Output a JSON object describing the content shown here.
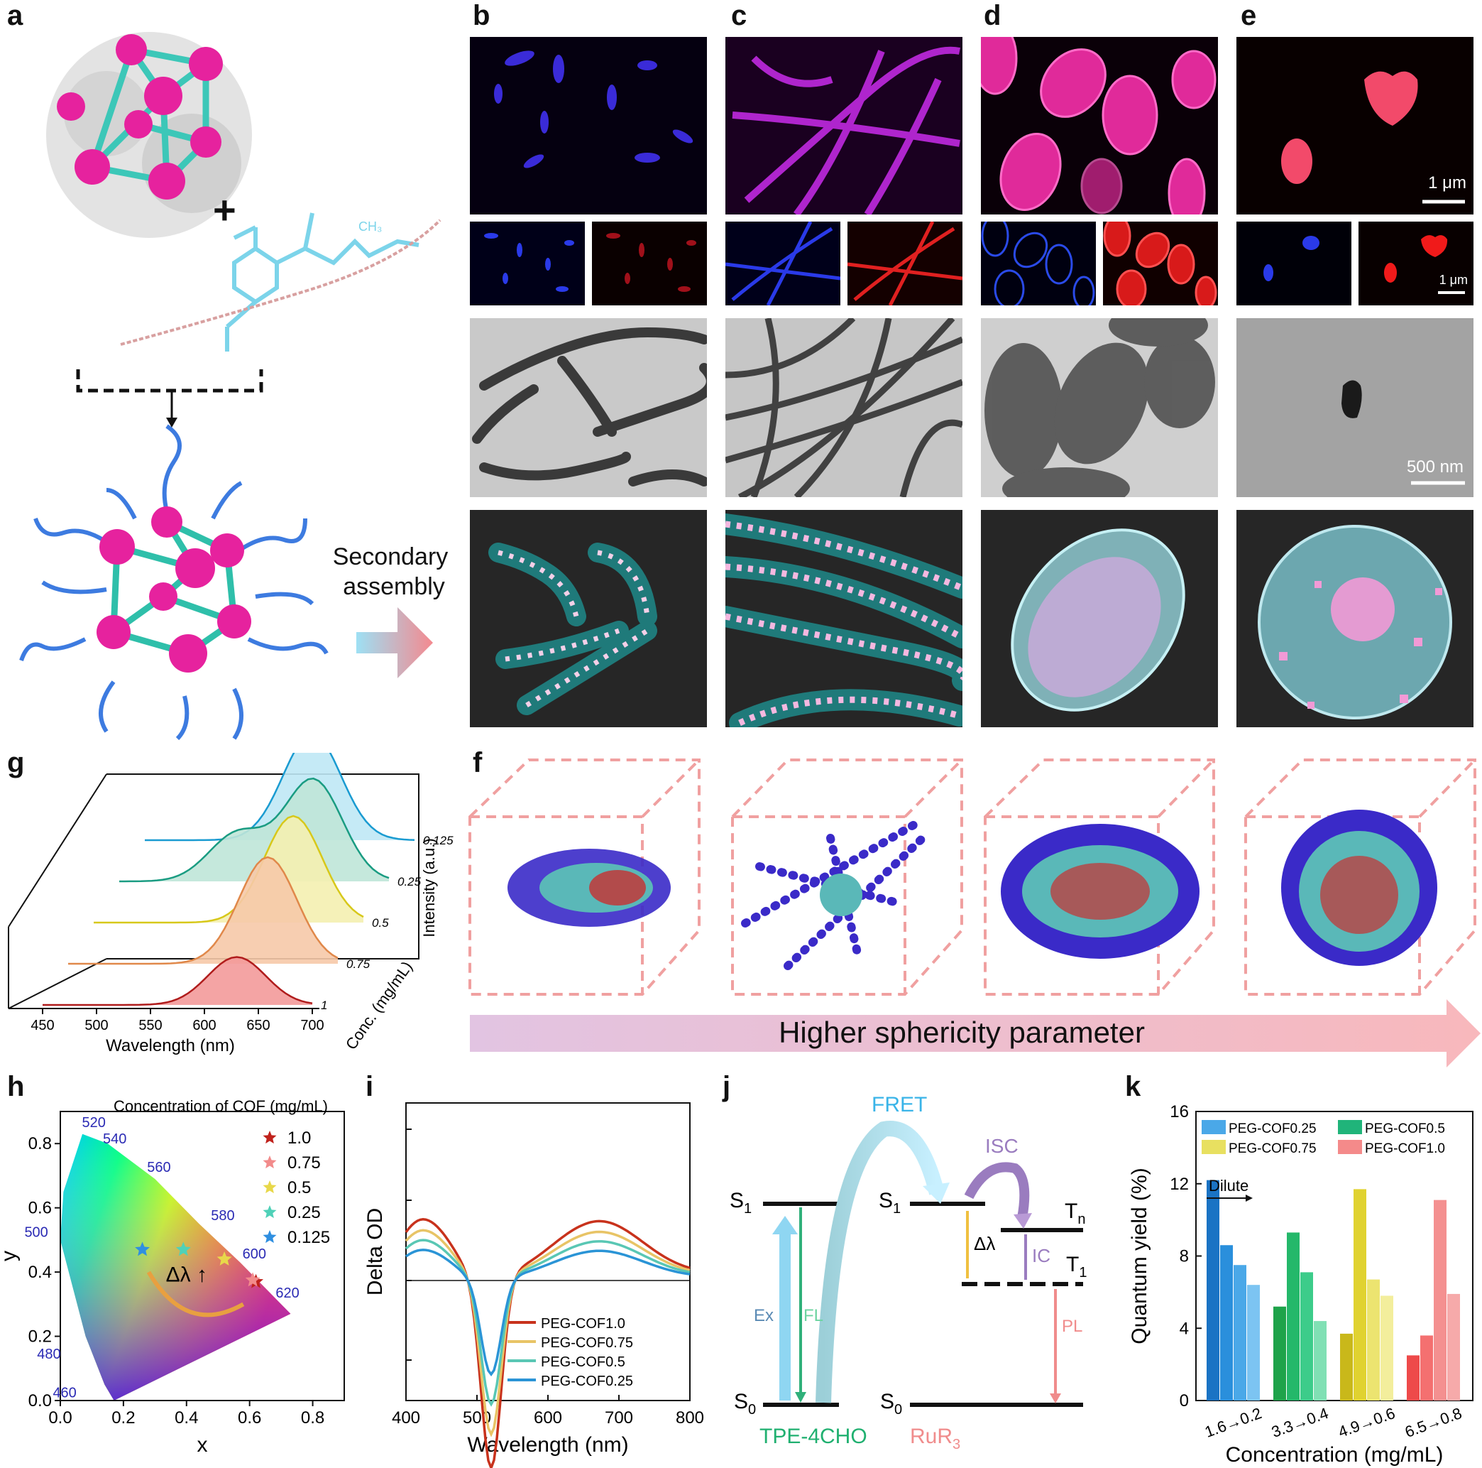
{
  "panels": {
    "a": "a",
    "b": "b",
    "c": "c",
    "d": "d",
    "e": "e",
    "f": "f",
    "g": "g",
    "h": "h",
    "i": "i",
    "j": "j",
    "k": "k"
  },
  "a": {
    "plus": "+",
    "ch3": "CH₃",
    "secondary": "Secondary",
    "assembly": "assembly"
  },
  "scalebars": {
    "top": "1 μm",
    "mid": "1 μm",
    "tem": "500 nm"
  },
  "f": {
    "arrow_text": "Higher sphericity parameter"
  },
  "g": {
    "chart_data": {
      "type": "area",
      "xlabel": "Wavelength (nm)",
      "zlabel": "Intensity (a.u.)",
      "depth_label": "Conc. (mg/mL)",
      "x_ticks": [
        "450",
        "500",
        "550",
        "600",
        "650",
        "700"
      ],
      "depth_ticks": [
        "0.125",
        "0.25",
        "0.5",
        "0.75",
        "1"
      ],
      "series": [
        {
          "conc": "0.125",
          "color": "#bfe8f5",
          "line": "#1a9bd1",
          "peaks": [
            [
              605,
              1.0
            ]
          ]
        },
        {
          "conc": "0.25",
          "color": "#bfe6d8",
          "line": "#1a9c82",
          "peaks": [
            [
              560,
              0.45
            ],
            [
              630,
              0.95
            ]
          ]
        },
        {
          "conc": "0.5",
          "color": "#f4f0b0",
          "line": "#d7c81a",
          "peaks": [
            [
              635,
              1.0
            ]
          ]
        },
        {
          "conc": "0.75",
          "color": "#f6c9a8",
          "line": "#e0884a",
          "peaks": [
            [
              635,
              1.0
            ]
          ]
        },
        {
          "conc": "1",
          "color": "#f39a9a",
          "line": "#b01c1c",
          "peaks": [
            [
              630,
              0.45
            ]
          ]
        }
      ]
    }
  },
  "h": {
    "chart_data": {
      "type": "scatter",
      "title": "Concentration of COF (mg/mL)",
      "xlabel": "x",
      "ylabel": "y",
      "xlim": [
        0,
        0.9
      ],
      "ylim": [
        0,
        0.9
      ],
      "x_ticks": [
        "0.0",
        "0.2",
        "0.4",
        "0.6",
        "0.8"
      ],
      "y_ticks": [
        "0.0",
        "0.2",
        "0.4",
        "0.6",
        "0.8"
      ],
      "wavelength_labels": [
        "520",
        "540",
        "560",
        "580",
        "600",
        "620",
        "500",
        "480",
        "460"
      ],
      "series": [
        {
          "name": "1.0",
          "x": 0.62,
          "y": 0.37,
          "color": "#c0221c"
        },
        {
          "name": "0.75",
          "x": 0.61,
          "y": 0.375,
          "color": "#f28b8b"
        },
        {
          "name": "0.5",
          "x": 0.52,
          "y": 0.44,
          "color": "#e8d84a"
        },
        {
          "name": "0.25",
          "x": 0.39,
          "y": 0.47,
          "color": "#4fd1b8"
        },
        {
          "name": "0.125",
          "x": 0.26,
          "y": 0.47,
          "color": "#2f8fe0"
        }
      ],
      "annotation": "Δλ ↑"
    }
  },
  "i": {
    "chart_data": {
      "type": "line",
      "xlabel": "Wavelength (nm)",
      "ylabel": "Delta OD",
      "xlim": [
        400,
        800
      ],
      "x_ticks": [
        "400",
        "500",
        "600",
        "700",
        "800"
      ],
      "series": [
        {
          "name": "PEG-COF1.0",
          "color": "#c8321c",
          "scale": 1.0
        },
        {
          "name": "PEG-COF0.75",
          "color": "#e8c466",
          "scale": 0.82
        },
        {
          "name": "PEG-COF0.5",
          "color": "#59c7b4",
          "scale": 0.66
        },
        {
          "name": "PEG-COF0.25",
          "color": "#2a94d6",
          "scale": 0.5
        }
      ]
    }
  },
  "j": {
    "fret": "FRET",
    "isc": "ISC",
    "s1": "S",
    "s1_sub": "1",
    "s0": "S",
    "s0_sub": "0",
    "tn": "T",
    "tn_sub": "n",
    "t1": "T",
    "t1_sub": "1",
    "ex": "Ex",
    "fl": "FL",
    "ic": "IC",
    "pl": "PL",
    "dl": "Δλ",
    "donor": "TPE-4CHO",
    "acceptor": "RuR",
    "acceptor_sub": "3"
  },
  "k": {
    "chart_data": {
      "type": "bar",
      "xlabel": "Concentration (mg/mL)",
      "ylabel": "Quantum yield (%)",
      "ylim": [
        0,
        16
      ],
      "y_ticks": [
        "0",
        "4",
        "8",
        "12",
        "16"
      ],
      "categories": [
        "1.6→0.2",
        "3.3→0.4",
        "4.9→0.6",
        "6.5→0.8"
      ],
      "annotation": "Dilute",
      "series": [
        {
          "name": "PEG-COF0.25",
          "legend_color": "#4aa8e8",
          "colors": [
            "#1a73c4",
            "#2a8fdc",
            "#4aa8e8",
            "#7cc4f2"
          ],
          "values": [
            12.2,
            8.6,
            7.5,
            6.4
          ]
        },
        {
          "name": "PEG-COF0.5",
          "legend_color": "#20b47a",
          "colors": [
            "#1ea34a",
            "#24b86a",
            "#3ccc8a",
            "#80e0b4"
          ],
          "values": [
            5.2,
            9.3,
            7.1,
            4.4
          ]
        },
        {
          "name": "PEG-COF0.75",
          "legend_color": "#e8e060",
          "colors": [
            "#c9b81a",
            "#e0d230",
            "#ece470",
            "#f3ee9c"
          ],
          "values": [
            3.7,
            11.7,
            6.7,
            5.8
          ]
        },
        {
          "name": "PEG-COF1.0",
          "legend_color": "#f48a8a",
          "colors": [
            "#ee4a4a",
            "#f47070",
            "#f49090",
            "#f6aaaa"
          ],
          "values": [
            2.5,
            3.6,
            11.1,
            5.9
          ]
        }
      ]
    }
  }
}
